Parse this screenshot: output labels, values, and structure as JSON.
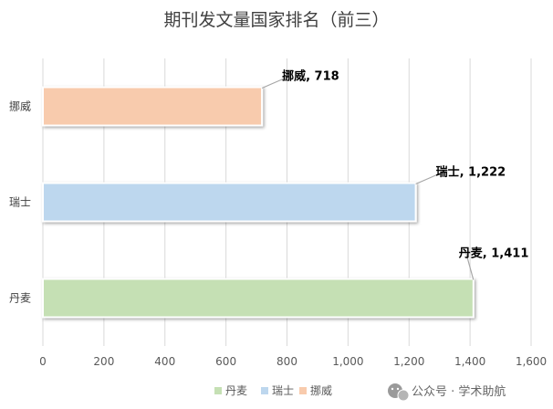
{
  "chart_data": {
    "type": "bar",
    "orientation": "horizontal",
    "title": "期刊发文量国家排名（前三）",
    "categories": [
      "丹麦",
      "瑞士",
      "挪威"
    ],
    "values": [
      1411,
      1222,
      718
    ],
    "data_labels": [
      "丹麦, 1,411",
      "瑞士, 1,222",
      "挪威, 718"
    ],
    "xlim": [
      0,
      1600
    ],
    "xticks": [
      0,
      200,
      400,
      600,
      800,
      1000,
      1200,
      1400,
      1600
    ],
    "xtick_labels": [
      "0",
      "200",
      "400",
      "600",
      "800",
      "1,000",
      "1,200",
      "1,400",
      "1,600"
    ],
    "colors": [
      "#c5e0b4",
      "#bdd7ee",
      "#f8cbad"
    ],
    "grid": true,
    "legend": {
      "position": "bottom",
      "entries": [
        "丹麦",
        "瑞士",
        "挪威"
      ]
    }
  },
  "watermark": {
    "icon": "wechat-icon",
    "text": "公众号 · 学术助航"
  }
}
